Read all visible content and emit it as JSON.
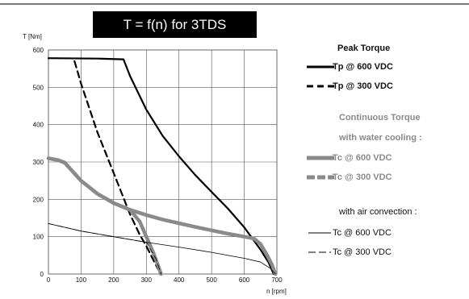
{
  "chart_data": {
    "type": "line",
    "title": "T = f(n) for 3TDS",
    "ylabel": "T [Nm]",
    "xlabel": "n [rpm]",
    "xlim": [
      0,
      700
    ],
    "ylim": [
      0,
      600
    ],
    "x_ticks": [
      "0",
      "100",
      "200",
      "300",
      "400",
      "500",
      "600",
      "700"
    ],
    "y_ticks": [
      "0",
      "100",
      "200",
      "300",
      "400",
      "500",
      "600"
    ],
    "grid": true,
    "legend_position": "right",
    "series": [
      {
        "name": "Tp @ 600 VDC",
        "group": "Peak Torque",
        "style": "solid-thick-black",
        "x": [
          0,
          150,
          230,
          250,
          300,
          350,
          400,
          450,
          500,
          550,
          600,
          625,
          650,
          675,
          690
        ],
        "y": [
          578,
          577,
          575,
          530,
          440,
          370,
          315,
          265,
          220,
          175,
          125,
          95,
          65,
          30,
          0
        ]
      },
      {
        "name": "Tp @ 300 VDC",
        "group": "Peak Torque",
        "style": "dashed-thick-black",
        "x": [
          80,
          100,
          150,
          200,
          250,
          280,
          300,
          320,
          335,
          345
        ],
        "y": [
          570,
          510,
          380,
          270,
          160,
          105,
          75,
          40,
          15,
          0
        ]
      },
      {
        "name": "Tc @ 600 VDC",
        "group": "Continuous Torque with water cooling :",
        "style": "solid-thick-gray",
        "x": [
          0,
          30,
          50,
          100,
          150,
          200,
          250,
          300,
          350,
          400,
          450,
          500,
          550,
          600,
          630,
          650,
          670,
          685,
          695
        ],
        "y": [
          310,
          305,
          298,
          250,
          215,
          190,
          172,
          158,
          146,
          136,
          126,
          117,
          108,
          100,
          95,
          80,
          50,
          25,
          0
        ]
      },
      {
        "name": "Tc @ 300 VDC",
        "group": "Continuous Torque with water cooling :",
        "style": "dashed-thick-gray",
        "x": [
          0,
          30,
          50,
          100,
          150,
          200,
          250,
          280,
          300,
          320,
          335,
          345
        ],
        "y": [
          310,
          305,
          298,
          250,
          215,
          190,
          172,
          140,
          100,
          60,
          25,
          0
        ]
      },
      {
        "name": "Tc @ 600 VDC",
        "group": "with air convection :",
        "style": "solid-thin-black",
        "x": [
          0,
          100,
          200,
          300,
          400,
          500,
          600,
          650,
          680,
          695
        ],
        "y": [
          135,
          115,
          100,
          85,
          72,
          58,
          42,
          32,
          15,
          0
        ]
      },
      {
        "name": "Tc @ 300 VDC",
        "group": "with air convection :",
        "style": "dashed-thin-black",
        "x": [
          0,
          100,
          200,
          300,
          330,
          345
        ],
        "y": [
          135,
          115,
          100,
          85,
          40,
          0
        ]
      }
    ],
    "legend": {
      "peak_heading": "Peak Torque",
      "tp600": "Tp @ 600 VDC",
      "tp300": "Tp @ 300 VDC",
      "continuous_heading": "Continuous Torque",
      "water_heading": "with water cooling :",
      "tc600w": "Tc @ 600 VDC",
      "tc300w": "Tc @ 300 VDC",
      "air_heading": "with air convection :",
      "tc600a": "Tc @ 600 VDC",
      "tc300a": "Tc @ 300 VDC"
    }
  }
}
